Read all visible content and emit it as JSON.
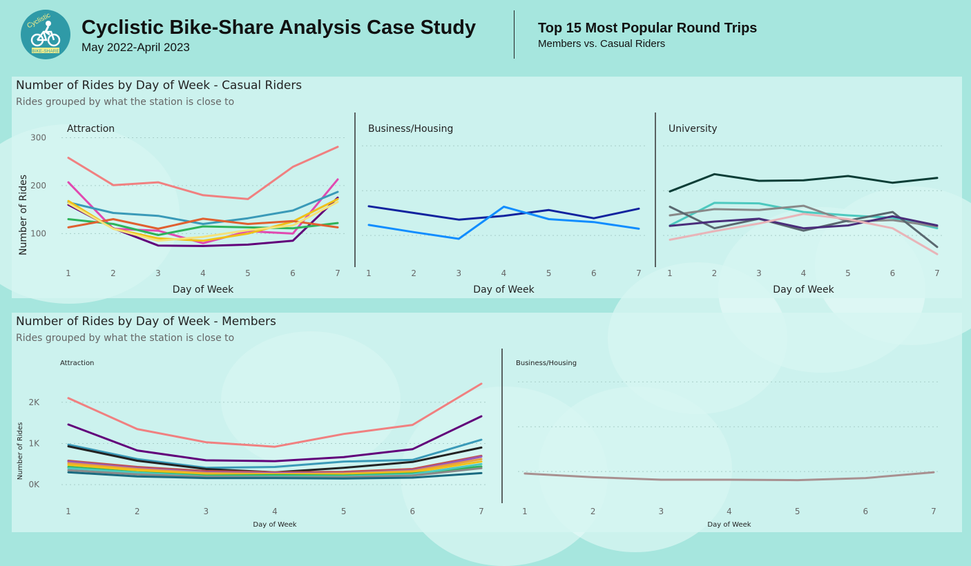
{
  "header": {
    "logo_text_top": "Cyclistic",
    "logo_text_bottom": "BIKE-SHARE",
    "title": "Cyclistic Bike-Share Analysis Case Study",
    "subtitle": "May 2022-April 2023",
    "side_title": "Top 15 Most Popular Round Trips",
    "side_subtitle": "Members vs. Casual Riders"
  },
  "colors": {
    "background": "#a6e6de",
    "panel": "#d6f5f1",
    "logo": "#2f9aa7"
  },
  "panels": {
    "casual": {
      "title": "Number of Rides by Day of Week - Casual Riders",
      "subtitle": "Rides grouped by what the station is close to"
    },
    "members": {
      "title": "Number of Rides by Day of Week - Members",
      "subtitle": "Rides grouped by what the station is close to"
    }
  },
  "chart_data": [
    {
      "id": "casual-attraction",
      "type": "line",
      "title": "Attraction",
      "xlabel": "Day of Week",
      "ylabel": "Number of Rides",
      "x": [
        1,
        2,
        3,
        4,
        5,
        6,
        7
      ],
      "ylim": [
        30,
        305
      ],
      "yticks": [
        100,
        200,
        300
      ],
      "ytick_labels": [
        "100",
        "200",
        "300"
      ],
      "grid": true,
      "series": [
        {
          "color": "#f08080",
          "values": [
            258,
            201,
            207,
            180,
            172,
            239,
            281
          ]
        },
        {
          "color": "#e049b0",
          "values": [
            207,
            110,
            106,
            80,
            105,
            100,
            213
          ]
        },
        {
          "color": "#3a9ab8",
          "values": [
            165,
            143,
            137,
            120,
            132,
            148,
            187
          ]
        },
        {
          "color": "#62007a",
          "values": [
            160,
            111,
            75,
            74,
            77,
            85,
            175
          ]
        },
        {
          "color": "#f0c018",
          "values": [
            168,
            110,
            90,
            85,
            100,
            125,
            172
          ]
        },
        {
          "color": "#2eb35a",
          "values": [
            130,
            120,
            97,
            115,
            113,
            111,
            122
          ]
        },
        {
          "color": "#e06030",
          "values": [
            113,
            130,
            110,
            131,
            120,
            126,
            113
          ]
        },
        {
          "color": "#f4e27a",
          "values": [
            163,
            110,
            85,
            93,
            107,
            117,
            166
          ]
        }
      ]
    },
    {
      "id": "casual-business",
      "type": "line",
      "title": "Business/Housing",
      "xlabel": "Day of Week",
      "ylabel": "",
      "x": [
        1,
        2,
        3,
        4,
        5,
        6,
        7
      ],
      "ylim": [
        30,
        305
      ],
      "grid": true,
      "series": [
        {
          "color": "#12239e",
          "values": [
            157,
            143,
            129,
            137,
            149,
            132,
            152
          ]
        },
        {
          "color": "#118dff",
          "values": [
            118,
            103,
            89,
            156,
            130,
            124,
            110
          ]
        }
      ]
    },
    {
      "id": "casual-university",
      "type": "line",
      "title": "University",
      "xlabel": "Day of Week",
      "ylabel": "",
      "x": [
        1,
        2,
        3,
        4,
        5,
        6,
        7
      ],
      "ylim": [
        30,
        305
      ],
      "grid": true,
      "series": [
        {
          "color": "#0b3d36",
          "values": [
            188,
            224,
            210,
            211,
            220,
            206,
            216
          ]
        },
        {
          "color": "#4dc9bf",
          "values": [
            117,
            164,
            163,
            145,
            138,
            133,
            111
          ]
        },
        {
          "color": "#888888",
          "values": [
            138,
            151,
            149,
            158,
            125,
            128,
            115
          ]
        },
        {
          "color": "#5a6870",
          "values": [
            156,
            111,
            131,
            106,
            127,
            145,
            72
          ]
        },
        {
          "color": "#4a2d7a",
          "values": [
            116,
            125,
            131,
            111,
            117,
            136,
            117
          ]
        },
        {
          "color": "#e8b4b8",
          "values": [
            87,
            105,
            121,
            141,
            130,
            111,
            57
          ]
        }
      ]
    },
    {
      "id": "members-attraction",
      "type": "line",
      "title": "Attraction",
      "xlabel": "Day of Week",
      "ylabel": "Number of Rides",
      "x": [
        1,
        2,
        3,
        4,
        5,
        6,
        7
      ],
      "ylim": [
        -450,
        2750
      ],
      "yticks": [
        0,
        1000,
        2000
      ],
      "ytick_labels": [
        "0K",
        "1K",
        "2K"
      ],
      "grid": true,
      "series": [
        {
          "color": "#f08080",
          "values": [
            2100,
            1350,
            1030,
            920,
            1230,
            1450,
            2450
          ]
        },
        {
          "color": "#62007a",
          "values": [
            1460,
            830,
            590,
            570,
            670,
            860,
            1660
          ]
        },
        {
          "color": "#3a9ab8",
          "values": [
            970,
            620,
            410,
            430,
            560,
            600,
            1090
          ]
        },
        {
          "color": "#222222",
          "values": [
            930,
            580,
            380,
            300,
            410,
            550,
            900
          ]
        },
        {
          "color": "#c0504d",
          "values": [
            580,
            430,
            330,
            300,
            310,
            380,
            700
          ]
        },
        {
          "color": "#9b59b6",
          "values": [
            560,
            400,
            300,
            280,
            280,
            350,
            680
          ]
        },
        {
          "color": "#e8a040",
          "values": [
            520,
            380,
            280,
            260,
            270,
            330,
            620
          ]
        },
        {
          "color": "#f0c018",
          "values": [
            480,
            350,
            250,
            250,
            250,
            300,
            560
          ]
        },
        {
          "color": "#2eb35a",
          "values": [
            430,
            300,
            220,
            230,
            220,
            270,
            440
          ]
        },
        {
          "color": "#4dc9bf",
          "values": [
            400,
            290,
            200,
            200,
            200,
            250,
            500
          ]
        },
        {
          "color": "#8a8a8a",
          "values": [
            350,
            250,
            190,
            180,
            180,
            220,
            400
          ]
        },
        {
          "color": "#1a6a80",
          "values": [
            300,
            200,
            160,
            160,
            150,
            170,
            280
          ]
        }
      ]
    },
    {
      "id": "members-business",
      "type": "line",
      "title": "Business/Housing",
      "xlabel": "Day of Week",
      "ylabel": "",
      "x": [
        1,
        2,
        3,
        4,
        5,
        6,
        7
      ],
      "ylim": [
        -450,
        2750
      ],
      "grid": true,
      "series": [
        {
          "color": "#a89090",
          "values": [
            270,
            180,
            120,
            120,
            110,
            160,
            300
          ]
        }
      ]
    }
  ]
}
